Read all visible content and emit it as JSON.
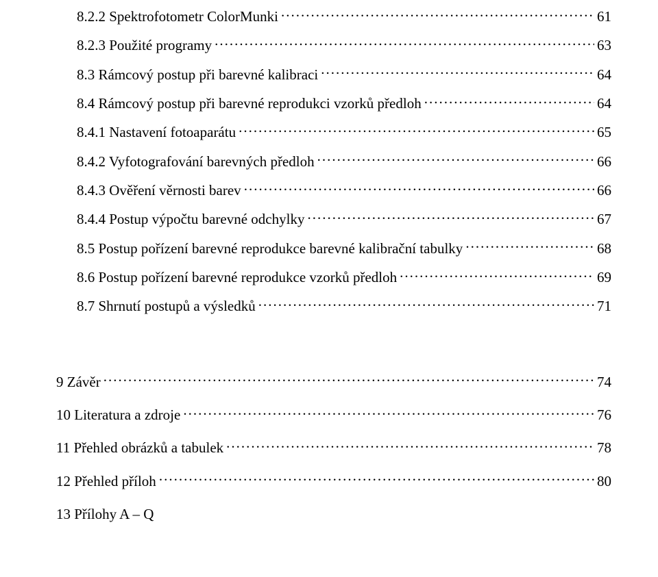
{
  "font": {
    "family": "Times New Roman",
    "size_pt": 16,
    "top_size_pt": 16
  },
  "colors": {
    "text": "#000000",
    "background": "#ffffff"
  },
  "toc": {
    "sections": [
      {
        "indent": "sub3",
        "label": "8.2.2  Spektrofotometr ColorMunki",
        "page": "61"
      },
      {
        "indent": "sub3",
        "label": "8.2.3  Použité programy",
        "page": "63"
      },
      {
        "indent": "sub2",
        "label": "8.3  Rámcový postup při barevné kalibraci",
        "page": "64"
      },
      {
        "indent": "sub2",
        "label": "8.4  Rámcový postup při barevné reprodukci vzorků předloh",
        "page": "64"
      },
      {
        "indent": "sub3",
        "label": "8.4.1  Nastavení fotoaparátu",
        "page": "65"
      },
      {
        "indent": "sub3",
        "label": "8.4.2  Vyfotografování barevných předloh",
        "page": "66"
      },
      {
        "indent": "sub3",
        "label": "8.4.3  Ověření věrnosti barev",
        "page": "66"
      },
      {
        "indent": "sub3",
        "label": "8.4.4  Postup výpočtu barevné odchylky",
        "page": "67"
      },
      {
        "indent": "sub2",
        "label": "8.5  Postup pořízení barevné reprodukce barevné kalibrační tabulky",
        "page": "68"
      },
      {
        "indent": "sub2",
        "label": "8.6  Postup pořízení barevné reprodukce vzorků předloh",
        "page": "69"
      },
      {
        "indent": "sub2",
        "label": "8.7  Shrnutí postupů a výsledků",
        "page": " 71"
      }
    ],
    "top": [
      {
        "label": "9 Závěr",
        "page": " 74"
      },
      {
        "label": "10 Literatura a zdroje",
        "page": " 76"
      },
      {
        "label": "11 Přehled obrázků a tabulek",
        "page": " 78"
      },
      {
        "label": "12 Přehled příloh",
        "page": " 80"
      },
      {
        "label": "13 Přílohy A – Q",
        "page": ""
      }
    ]
  }
}
